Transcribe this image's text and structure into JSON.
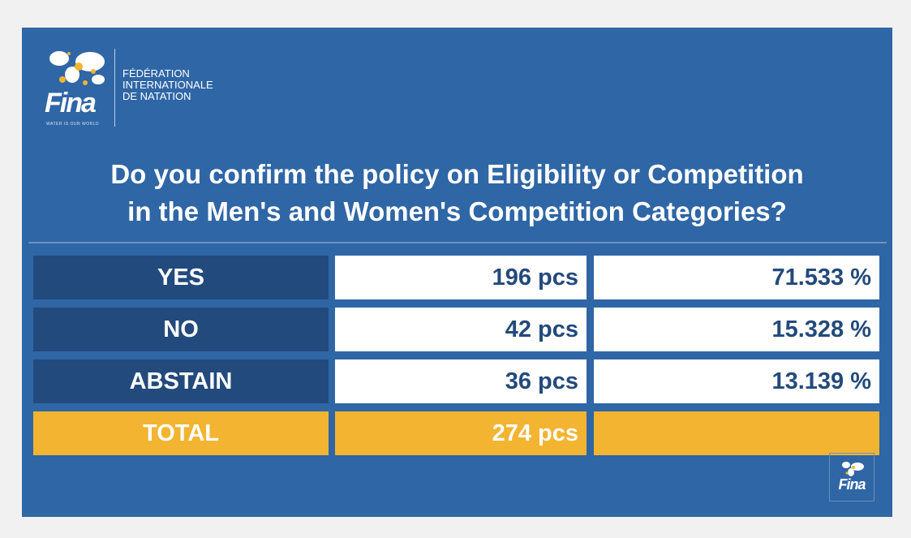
{
  "branding": {
    "logo_word": "Fina",
    "tagline": "WATER IS OUR WORLD",
    "org_lines": [
      "FÉDÉRATION",
      "INTERNATIONALE",
      "DE NATATION"
    ],
    "accent_color": "#f2b431",
    "background_color": "#2f66a5",
    "label_color": "#234a7c"
  },
  "question": {
    "line1": "Do you confirm the policy on Eligibility or Competition",
    "line2": "in the Men's and Women's Competition Categories?"
  },
  "results": [
    {
      "label": "YES",
      "count": "196 pcs",
      "percent": "71.533 %"
    },
    {
      "label": "NO",
      "count": "42 pcs",
      "percent": "15.328 %"
    },
    {
      "label": "ABSTAIN",
      "count": "36 pcs",
      "percent": "13.139 %"
    }
  ],
  "total": {
    "label": "TOTAL",
    "count": "274 pcs",
    "percent": ""
  },
  "corner_badge": {
    "word": "Fina",
    "icon": "globe-icon"
  }
}
